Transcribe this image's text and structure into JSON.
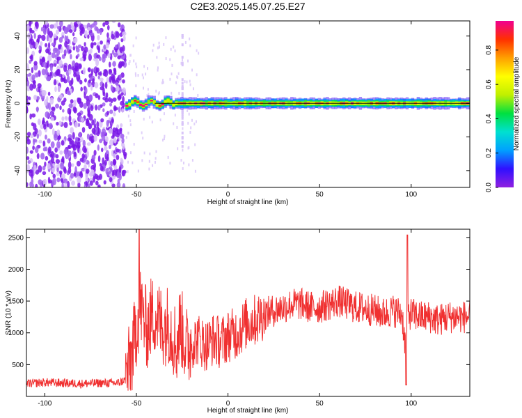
{
  "title": "C2E3.2025.145.07.25.E27",
  "chart_data": [
    {
      "type": "heatmap",
      "xlabel": "Height of straight line (km)",
      "ylabel": "Frequency (Hz)",
      "xlim": [
        -110,
        132
      ],
      "ylim": [
        -50,
        49
      ],
      "x_ticks": [
        -100,
        -50,
        0,
        50,
        100
      ],
      "y_ticks": [
        -40,
        -20,
        0,
        20,
        40
      ],
      "colorbar": {
        "label": "Normalized spectral amplitude",
        "range": [
          0,
          0.97
        ],
        "ticks": [
          0,
          0.2,
          0.4,
          0.6,
          0.8
        ],
        "colormap": [
          "#9020e0",
          "#3010ff",
          "#00a0ff",
          "#00e0d0",
          "#00e040",
          "#c0f000",
          "#ffff00",
          "#ffa000",
          "#ff3000",
          "#f00090"
        ]
      },
      "regions": [
        {
          "x_range": [
            -110,
            -56
          ],
          "f_range": [
            -50,
            49
          ],
          "amplitude": 0.05
        },
        {
          "x_range": [
            -56,
            132
          ],
          "f_center": 0,
          "f_halfwidth": 3,
          "amplitude": 0.9
        }
      ],
      "grid": false
    },
    {
      "type": "line",
      "xlabel": "Height of straight line (km)",
      "ylabel": "SNR (10 * v/v)",
      "xlim": [
        -110,
        132
      ],
      "ylim": [
        0,
        2630
      ],
      "x_ticks": [
        -100,
        -50,
        0,
        50,
        100
      ],
      "y_ticks": [
        500,
        1000,
        1500,
        2000,
        2500
      ],
      "color": "#f03030",
      "series": [
        {
          "x": [
            -110,
            -100,
            -90,
            -80,
            -70,
            -60,
            -56,
            -52,
            -50,
            -48,
            -46,
            -44,
            -42,
            -40,
            -36,
            -32,
            -28,
            -26,
            -24,
            -22,
            -20,
            -16,
            -12,
            -8,
            -4,
            0,
            5,
            10,
            15,
            20,
            25,
            30,
            35,
            40,
            45,
            50,
            55,
            60,
            65,
            70,
            75,
            80,
            85,
            90,
            95,
            97,
            98,
            100,
            105,
            110,
            115,
            120,
            125,
            132
          ],
          "y": [
            200,
            220,
            210,
            200,
            210,
            210,
            260,
            700,
            1100,
            1450,
            1200,
            1050,
            1250,
            1300,
            1100,
            1150,
            800,
            1150,
            900,
            750,
            850,
            900,
            800,
            900,
            850,
            950,
            1000,
            1150,
            1200,
            1300,
            1350,
            1400,
            1450,
            1450,
            1400,
            1400,
            1450,
            1500,
            1450,
            1400,
            1380,
            1350,
            1300,
            1350,
            1300,
            750,
            1300,
            1300,
            1250,
            1250,
            1200,
            1250,
            1250,
            1250
          ]
        }
      ],
      "grid": false
    }
  ]
}
